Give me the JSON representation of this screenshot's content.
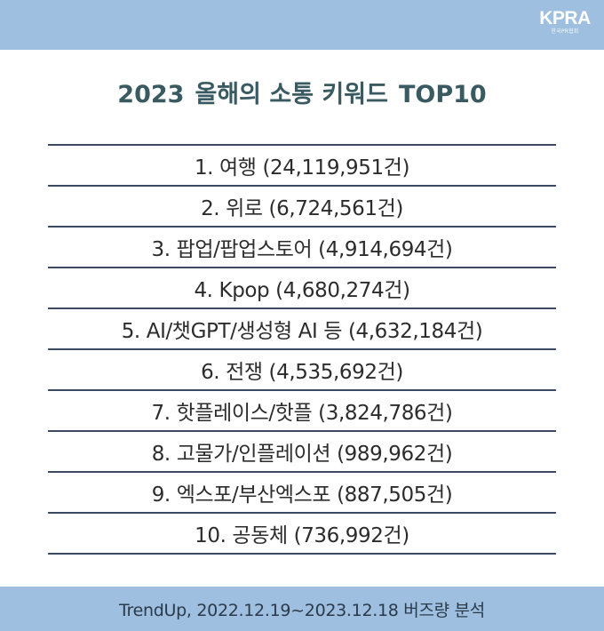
{
  "logo": {
    "mark": "KPRA",
    "sub": "한국PR협회"
  },
  "title": {
    "year": "2023",
    "text": "올해의 소통 키워드",
    "suffix": "TOP10"
  },
  "keywords": [
    "1. 여행 (24,119,951건)",
    "2. 위로 (6,724,561건)",
    "3. 팝업/팝업스토어 (4,914,694건)",
    "4. Kpop (4,680,274건)",
    "5. AI/챗GPT/생성형 AI 등 (4,632,184건)",
    "6. 전쟁 (4,535,692건)",
    "7. 핫플레이스/핫플 (3,824,786건)",
    "8. 고물가/인플레이션 (989,962건)",
    "9. 엑스포/부산엑스포 (887,505건)",
    "10. 공동체 (736,992건)"
  ],
  "footer": "TrendUp, 2022.12.19~2023.12.18 버즈량 분석",
  "colors": {
    "bar": "#9ebfdf",
    "title": "#3a5a62",
    "rule": "#3c4a66"
  }
}
